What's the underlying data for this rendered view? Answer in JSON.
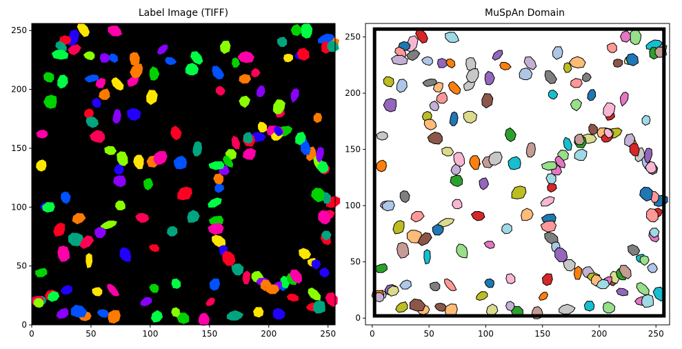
{
  "figure": {
    "background": "#ffffff"
  },
  "chart_data": [
    {
      "type": "heatmap",
      "title": "Label Image (TIFF)",
      "xlabel": "",
      "ylabel": "",
      "xlim": [
        0,
        256
      ],
      "ylim": [
        0,
        256
      ],
      "xticks": [
        0,
        50,
        100,
        150,
        200,
        250
      ],
      "yticks": [
        0,
        50,
        100,
        150,
        200,
        250
      ],
      "background_color": "#000000",
      "colormap": "prism",
      "palette": [
        "#ff0022",
        "#ff7a00",
        "#ffe600",
        "#8aff00",
        "#00d200",
        "#00a57f",
        "#0051ff",
        "#2200ff",
        "#8a00ff",
        "#ff00a8",
        "#ff0055",
        "#00ff44"
      ],
      "rings": [
        {
          "cx": 204,
          "cy": 100,
          "rx": 48,
          "ry": 66,
          "n": 40
        },
        {
          "cx": 41,
          "cy": 140,
          "rx": 34,
          "ry": 70,
          "n": 14
        },
        {
          "cx": 140,
          "cy": 240,
          "rx": 115,
          "ry": 16,
          "n": 26
        },
        {
          "cx": 130,
          "cy": 20,
          "rx": 125,
          "ry": 14,
          "n": 26
        },
        {
          "cx": 130,
          "cy": 175,
          "rx": 80,
          "ry": 40,
          "n": 22
        }
      ],
      "scatter": [
        [
          230,
          230
        ],
        [
          212,
          240
        ],
        [
          190,
          215
        ],
        [
          165,
          235
        ],
        [
          110,
          235
        ],
        [
          90,
          215
        ],
        [
          70,
          225
        ],
        [
          25,
          230
        ],
        [
          15,
          210
        ],
        [
          60,
          205
        ],
        [
          100,
          195
        ],
        [
          85,
          180
        ],
        [
          120,
          165
        ],
        [
          140,
          150
        ],
        [
          160,
          200
        ],
        [
          180,
          190
        ],
        [
          220,
          195
        ],
        [
          240,
          175
        ],
        [
          230,
          150
        ],
        [
          245,
          135
        ],
        [
          240,
          110
        ],
        [
          245,
          90
        ],
        [
          230,
          60
        ],
        [
          245,
          45
        ],
        [
          220,
          25
        ],
        [
          170,
          8
        ],
        [
          150,
          20
        ],
        [
          120,
          10
        ],
        [
          95,
          20
        ],
        [
          70,
          8
        ],
        [
          40,
          12
        ],
        [
          20,
          25
        ],
        [
          10,
          45
        ],
        [
          25,
          60
        ],
        [
          50,
          55
        ],
        [
          80,
          60
        ],
        [
          105,
          65
        ],
        [
          120,
          80
        ],
        [
          95,
          90
        ],
        [
          75,
          100
        ],
        [
          60,
          80
        ],
        [
          40,
          90
        ],
        [
          30,
          110
        ],
        [
          15,
          100
        ],
        [
          100,
          120
        ],
        [
          110,
          140
        ],
        [
          90,
          140
        ],
        [
          75,
          130
        ],
        [
          130,
          110
        ],
        [
          135,
          90
        ]
      ]
    },
    {
      "type": "scatter",
      "title": "MuSpAn Domain",
      "xlabel": "",
      "ylabel": "",
      "xlim": [
        -6,
        262
      ],
      "ylim": [
        -6,
        262
      ],
      "xticks": [
        0,
        50,
        100,
        150,
        200,
        250
      ],
      "yticks": [
        0,
        50,
        100,
        150,
        200,
        250
      ],
      "domain_boundary": {
        "xmin": 2,
        "xmax": 257,
        "ymin": 2,
        "ymax": 257
      },
      "colormap": "tab20",
      "palette": [
        "#1f77b4",
        "#aec7e8",
        "#ff7f0e",
        "#ffbb78",
        "#2ca02c",
        "#98df8a",
        "#d62728",
        "#ff9896",
        "#9467bd",
        "#c5b0d5",
        "#8c564b",
        "#c49c94",
        "#e377c2",
        "#f7b6d2",
        "#7f7f7f",
        "#c7c7c7",
        "#bcbd22",
        "#dbdb8d",
        "#17becf",
        "#9edae5"
      ]
    }
  ]
}
